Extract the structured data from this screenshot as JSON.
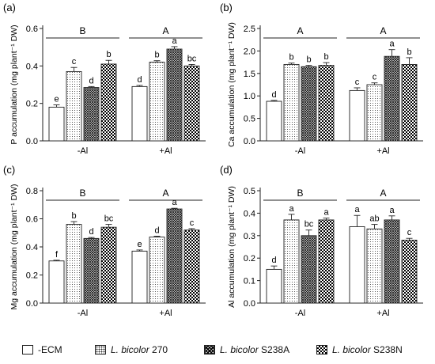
{
  "legend": [
    {
      "id": "ecm",
      "label": "-ECM",
      "italic": "",
      "suffix": "",
      "pattern": "plain"
    },
    {
      "id": "l270",
      "label": "",
      "italic": "L. bicolor",
      "suffix": " 270",
      "pattern": "dots"
    },
    {
      "id": "s238a",
      "label": "",
      "italic": "L. bicolor",
      "suffix": " S238A",
      "pattern": "dense"
    },
    {
      "id": "s238n",
      "label": "",
      "italic": "L. bicolor",
      "suffix": " S238N",
      "pattern": "check"
    }
  ],
  "chart_data": [
    {
      "panel_label": "(a)",
      "type": "bar",
      "ylabel": "P accumulation  (mg plant⁻¹ DW)",
      "ylim": [
        0,
        0.6
      ],
      "yticks": [
        "0.0",
        "0.2",
        "0.4",
        "0.6"
      ],
      "yticks_values": [
        0,
        0.2,
        0.4,
        0.6
      ],
      "categories": [
        "-Al",
        "+Al"
      ],
      "group_letters": [
        "B",
        "A"
      ],
      "series": [
        {
          "name": "-ECM",
          "values": [
            0.18,
            0.29
          ],
          "errors": [
            0.012,
            0.006
          ],
          "letters": [
            "e",
            "d"
          ]
        },
        {
          "name": "L. bicolor 270",
          "values": [
            0.37,
            0.42
          ],
          "errors": [
            0.022,
            0.008
          ],
          "letters": [
            "c",
            "b"
          ]
        },
        {
          "name": "L. bicolor S238A",
          "values": [
            0.285,
            0.49
          ],
          "errors": [
            0.005,
            0.013
          ],
          "letters": [
            "d",
            "a"
          ]
        },
        {
          "name": "L. bicolor S238N",
          "values": [
            0.41,
            0.4
          ],
          "errors": [
            0.02,
            0.008
          ],
          "letters": [
            "b",
            "bc"
          ]
        }
      ]
    },
    {
      "panel_label": "(b)",
      "type": "bar",
      "ylabel": "Ca accumulation  (mg plant⁻¹ DW)",
      "ylim": [
        0,
        2.5
      ],
      "yticks": [
        "0.0",
        "0.5",
        "1.0",
        "1.5",
        "2.0",
        "2.5"
      ],
      "yticks_values": [
        0,
        0.5,
        1.0,
        1.5,
        2.0,
        2.5
      ],
      "categories": [
        "-Al",
        "+Al"
      ],
      "group_letters": [
        "A",
        "A"
      ],
      "series": [
        {
          "name": "-ECM",
          "values": [
            0.88,
            1.12
          ],
          "errors": [
            0.02,
            0.06
          ],
          "letters": [
            "d",
            "c"
          ]
        },
        {
          "name": "L. bicolor 270",
          "values": [
            1.7,
            1.25
          ],
          "errors": [
            0.03,
            0.04
          ],
          "letters": [
            "b",
            "c"
          ]
        },
        {
          "name": "L. bicolor S238A",
          "values": [
            1.65,
            1.88
          ],
          "errors": [
            0.03,
            0.15
          ],
          "letters": [
            "b",
            "a"
          ]
        },
        {
          "name": "L. bicolor S238N",
          "values": [
            1.68,
            1.7
          ],
          "errors": [
            0.06,
            0.15
          ],
          "letters": [
            "b",
            "b"
          ]
        }
      ]
    },
    {
      "panel_label": "(c)",
      "type": "bar",
      "ylabel": "Mg accumulation  (mg plant⁻¹ DW)",
      "ylim": [
        0,
        0.8
      ],
      "yticks": [
        "0.0",
        "0.2",
        "0.4",
        "0.6",
        "0.8"
      ],
      "yticks_values": [
        0,
        0.2,
        0.4,
        0.6,
        0.8
      ],
      "categories": [
        "-Al",
        "+Al"
      ],
      "group_letters": [
        "B",
        "A"
      ],
      "series": [
        {
          "name": "-ECM",
          "values": [
            0.3,
            0.37
          ],
          "errors": [
            0.005,
            0.008
          ],
          "letters": [
            "f",
            "e"
          ]
        },
        {
          "name": "L. bicolor 270",
          "values": [
            0.56,
            0.47
          ],
          "errors": [
            0.02,
            0.006
          ],
          "letters": [
            "b",
            "d"
          ]
        },
        {
          "name": "L. bicolor S238A",
          "values": [
            0.46,
            0.67
          ],
          "errors": [
            0.007,
            0.005
          ],
          "letters": [
            "d",
            "a"
          ]
        },
        {
          "name": "L. bicolor S238N",
          "values": [
            0.54,
            0.52
          ],
          "errors": [
            0.02,
            0.01
          ],
          "letters": [
            "bc",
            "c"
          ]
        }
      ]
    },
    {
      "panel_label": "(d)",
      "type": "bar",
      "ylabel": "Al accumulation  (mg plant⁻¹ DW)",
      "ylim": [
        0,
        0.5
      ],
      "yticks": [
        "0.0",
        "0.1",
        "0.2",
        "0.3",
        "0.4",
        "0.5"
      ],
      "yticks_values": [
        0,
        0.1,
        0.2,
        0.3,
        0.4,
        0.5
      ],
      "categories": [
        "-Al",
        "+Al"
      ],
      "group_letters": [
        "B",
        "A"
      ],
      "series": [
        {
          "name": "-ECM",
          "values": [
            0.15,
            0.34
          ],
          "errors": [
            0.015,
            0.05
          ],
          "letters": [
            "d",
            "a"
          ]
        },
        {
          "name": "L. bicolor 270",
          "values": [
            0.37,
            0.33
          ],
          "errors": [
            0.025,
            0.02
          ],
          "letters": [
            "a",
            "ab"
          ]
        },
        {
          "name": "L. bicolor S238A",
          "values": [
            0.3,
            0.37
          ],
          "errors": [
            0.025,
            0.018
          ],
          "letters": [
            "bc",
            "a"
          ]
        },
        {
          "name": "L. bicolor S238N",
          "values": [
            0.37,
            0.28
          ],
          "errors": [
            0.008,
            0.008
          ],
          "letters": [
            "a",
            "c"
          ]
        }
      ]
    }
  ]
}
